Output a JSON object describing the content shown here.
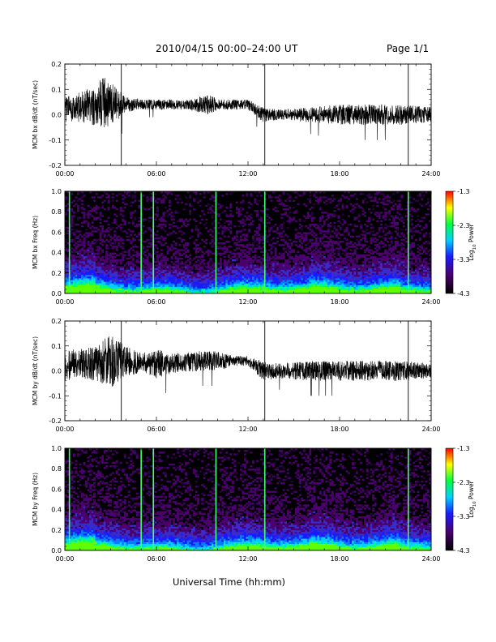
{
  "header": {
    "title": "2010/04/15  00:00–24:00 UT",
    "page": "Page 1/1"
  },
  "x_axis_title": "Universal Time (hh:mm)",
  "colors": {
    "trace": "#000000",
    "spectrogram_background": "#000000",
    "colorbar": [
      "#000000",
      "#4b006e",
      "#1a1aff",
      "#00d0ff",
      "#00ff40",
      "#ffff00",
      "#ff0000"
    ]
  },
  "chart_data": [
    {
      "type": "line",
      "ylabel": "MCM bx dB/dt (nT/sec)",
      "xlim": [
        "00:00",
        "24:00"
      ],
      "x_ticks": [
        "00:00",
        "06:00",
        "12:00",
        "18:00",
        "24:00"
      ],
      "ylim": [
        -0.2,
        0.2
      ],
      "y_ticks": [
        "-0.2",
        "-0.1",
        "0.0",
        "0.1",
        "0.2"
      ],
      "series_envelope": {
        "x_hours": [
          0,
          1,
          2,
          2.5,
          3,
          4,
          5,
          6,
          8,
          9.5,
          10,
          11,
          12,
          13,
          14,
          16,
          18,
          20,
          22,
          24
        ],
        "center": [
          0.02,
          0.03,
          0.035,
          0.05,
          0.04,
          0.04,
          0.04,
          0.04,
          0.04,
          0.04,
          0.04,
          0.04,
          0.04,
          0.0,
          0.0,
          0.0,
          0.0,
          0.0,
          0.0,
          0.0
        ],
        "amplitude": [
          0.05,
          0.06,
          0.08,
          0.1,
          0.09,
          0.03,
          0.02,
          0.02,
          0.02,
          0.04,
          0.02,
          0.02,
          0.02,
          0.03,
          0.02,
          0.03,
          0.04,
          0.04,
          0.04,
          0.03
        ]
      },
      "vertical_markers_hours": [
        3.7,
        13.1,
        22.5
      ]
    },
    {
      "type": "heatmap",
      "ylabel": "MCM bx Freq (Hz)",
      "xlim": [
        "00:00",
        "24:00"
      ],
      "x_ticks": [
        "00:00",
        "06:00",
        "12:00",
        "18:00",
        "24:00"
      ],
      "ylim": [
        0.0,
        1.0
      ],
      "y_ticks": [
        "0.0",
        "0.2",
        "0.4",
        "0.6",
        "0.8",
        "1.0"
      ],
      "colorbar_label": "Log10 Power",
      "colorbar_range": [
        -4.3,
        -1.3
      ],
      "colorbar_ticks": [
        "-1.3",
        "-2.3",
        "-3.3",
        "-4.3"
      ],
      "bright_vertical_lines_hours": [
        0.3,
        5.0,
        5.8,
        9.9,
        13.1,
        22.5
      ]
    },
    {
      "type": "line",
      "ylabel": "MCM by dB/dt (nT/sec)",
      "xlim": [
        "00:00",
        "24:00"
      ],
      "x_ticks": [
        "00:00",
        "06:00",
        "12:00",
        "18:00",
        "24:00"
      ],
      "ylim": [
        -0.2,
        0.2
      ],
      "y_ticks": [
        "-0.2",
        "-0.1",
        "0.0",
        "0.1",
        "0.2"
      ],
      "series_envelope": {
        "x_hours": [
          0,
          1,
          2,
          3,
          4,
          5,
          6,
          7,
          9,
          10,
          11,
          12,
          13,
          14,
          16,
          18,
          20,
          22,
          24
        ],
        "center": [
          0.02,
          0.03,
          0.03,
          0.04,
          0.04,
          0.03,
          0.03,
          0.03,
          0.04,
          0.04,
          0.04,
          0.04,
          0.0,
          0.0,
          0.0,
          0.0,
          0.0,
          0.0,
          0.0
        ],
        "amplitude": [
          0.06,
          0.06,
          0.07,
          0.11,
          0.06,
          0.04,
          0.06,
          0.04,
          0.04,
          0.04,
          0.02,
          0.02,
          0.04,
          0.03,
          0.04,
          0.04,
          0.04,
          0.04,
          0.03
        ]
      },
      "vertical_markers_hours": [
        3.7,
        13.1,
        22.5
      ]
    },
    {
      "type": "heatmap",
      "ylabel": "MCM by Freq (Hz)",
      "xlim": [
        "00:00",
        "24:00"
      ],
      "x_ticks": [
        "00:00",
        "06:00",
        "12:00",
        "18:00",
        "24:00"
      ],
      "ylim": [
        0.0,
        1.0
      ],
      "y_ticks": [
        "0.0",
        "0.2",
        "0.4",
        "0.6",
        "0.8",
        "1.0"
      ],
      "colorbar_label": "Log10 Power",
      "colorbar_range": [
        -4.3,
        -1.3
      ],
      "colorbar_ticks": [
        "-1.3",
        "-2.3",
        "-3.3",
        "-4.3"
      ],
      "bright_vertical_lines_hours": [
        0.3,
        5.0,
        5.8,
        9.9,
        13.1,
        22.5
      ]
    }
  ]
}
